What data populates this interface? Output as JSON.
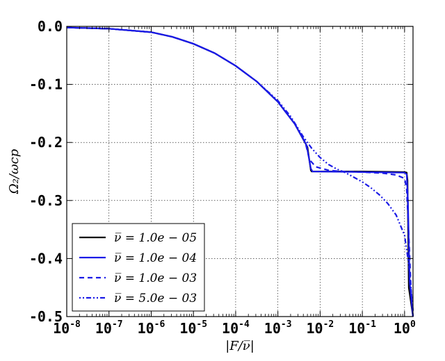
{
  "chart_data": {
    "type": "line",
    "title": "",
    "xlabel": "|F/ν̅|",
    "ylabel": "Ω₂/ωcp",
    "xscale": "log",
    "xlim_exp": [
      -8,
      0.2
    ],
    "ylim": [
      -0.5,
      0.0
    ],
    "grid": true,
    "legend_position": "lower-left",
    "x_ticks": [
      {
        "base": "10",
        "exp": "-8"
      },
      {
        "base": "10",
        "exp": "-7"
      },
      {
        "base": "10",
        "exp": "-6"
      },
      {
        "base": "10",
        "exp": "-5"
      },
      {
        "base": "10",
        "exp": "-4"
      },
      {
        "base": "10",
        "exp": "-3"
      },
      {
        "base": "10",
        "exp": "-2"
      },
      {
        "base": "10",
        "exp": "-1"
      },
      {
        "base": "10",
        "exp": "0"
      }
    ],
    "y_ticks": [
      {
        "value": 0.0,
        "label": "0.0"
      },
      {
        "value": -0.1,
        "label": "-0.1"
      },
      {
        "value": -0.2,
        "label": "-0.2"
      },
      {
        "value": -0.3,
        "label": "-0.3"
      },
      {
        "value": -0.4,
        "label": "-0.4"
      },
      {
        "value": -0.5,
        "label": "-0.5"
      }
    ],
    "series": [
      {
        "name": "ν̅ = 1.0e − 05",
        "color": "#000000",
        "dash": "solid",
        "points": [
          [
            -8,
            -0.002
          ],
          [
            -7,
            -0.004
          ],
          [
            -6,
            -0.01
          ],
          [
            -5.5,
            -0.018
          ],
          [
            -5,
            -0.03
          ],
          [
            -4.5,
            -0.046
          ],
          [
            -4,
            -0.068
          ],
          [
            -3.5,
            -0.095
          ],
          [
            -3,
            -0.13
          ],
          [
            -2.6,
            -0.168
          ],
          [
            -2.3,
            -0.208
          ],
          [
            -2.22,
            -0.248
          ],
          [
            -2.2,
            -0.25
          ],
          [
            -1,
            -0.25
          ],
          [
            0,
            -0.251
          ],
          [
            0.05,
            -0.252
          ],
          [
            0.07,
            -0.265
          ],
          [
            0.1,
            -0.45
          ],
          [
            0.2,
            -0.5
          ]
        ]
      },
      {
        "name": "ν̅ = 1.0e − 04",
        "color": "#1a1ae6",
        "dash": "solid",
        "points": [
          [
            -8,
            -0.002
          ],
          [
            -7,
            -0.004
          ],
          [
            -6,
            -0.01
          ],
          [
            -5.5,
            -0.018
          ],
          [
            -5,
            -0.03
          ],
          [
            -4.5,
            -0.046
          ],
          [
            -4,
            -0.068
          ],
          [
            -3.5,
            -0.095
          ],
          [
            -3,
            -0.13
          ],
          [
            -2.6,
            -0.168
          ],
          [
            -2.32,
            -0.205
          ],
          [
            -2.22,
            -0.245
          ],
          [
            -2.18,
            -0.25
          ],
          [
            -1,
            -0.251
          ],
          [
            0,
            -0.252
          ],
          [
            0.05,
            -0.255
          ],
          [
            0.08,
            -0.3
          ],
          [
            0.12,
            -0.44
          ],
          [
            0.2,
            -0.5
          ]
        ]
      },
      {
        "name": "ν̅ = 1.0e − 03",
        "color": "#1a1ae6",
        "dash": "dashed",
        "points": [
          [
            -8,
            -0.002
          ],
          [
            -7,
            -0.004
          ],
          [
            -6,
            -0.01
          ],
          [
            -5.5,
            -0.018
          ],
          [
            -5,
            -0.03
          ],
          [
            -4.5,
            -0.046
          ],
          [
            -4,
            -0.068
          ],
          [
            -3.5,
            -0.095
          ],
          [
            -3,
            -0.13
          ],
          [
            -2.6,
            -0.168
          ],
          [
            -2.35,
            -0.2
          ],
          [
            -2.25,
            -0.23
          ],
          [
            -2.1,
            -0.242
          ],
          [
            -1.8,
            -0.248
          ],
          [
            -1.5,
            -0.25
          ],
          [
            -1,
            -0.251
          ],
          [
            -0.5,
            -0.253
          ],
          [
            -0.2,
            -0.256
          ],
          [
            0,
            -0.262
          ],
          [
            0.05,
            -0.28
          ],
          [
            0.1,
            -0.36
          ],
          [
            0.15,
            -0.45
          ],
          [
            0.2,
            -0.5
          ]
        ]
      },
      {
        "name": "ν̅ = 5.0e − 03",
        "color": "#1a1ae6",
        "dash": "dashdot",
        "points": [
          [
            -8,
            -0.002
          ],
          [
            -7,
            -0.004
          ],
          [
            -6,
            -0.01
          ],
          [
            -5.5,
            -0.018
          ],
          [
            -5,
            -0.03
          ],
          [
            -4.5,
            -0.046
          ],
          [
            -4,
            -0.068
          ],
          [
            -3.5,
            -0.095
          ],
          [
            -3,
            -0.128
          ],
          [
            -2.7,
            -0.155
          ],
          [
            -2.4,
            -0.19
          ],
          [
            -2.2,
            -0.21
          ],
          [
            -2,
            -0.226
          ],
          [
            -1.8,
            -0.238
          ],
          [
            -1.6,
            -0.246
          ],
          [
            -1.4,
            -0.252
          ],
          [
            -1.2,
            -0.26
          ],
          [
            -1,
            -0.268
          ],
          [
            -0.8,
            -0.278
          ],
          [
            -0.6,
            -0.29
          ],
          [
            -0.4,
            -0.305
          ],
          [
            -0.2,
            -0.325
          ],
          [
            0,
            -0.36
          ],
          [
            0.1,
            -0.41
          ],
          [
            0.2,
            -0.49
          ]
        ]
      }
    ]
  }
}
